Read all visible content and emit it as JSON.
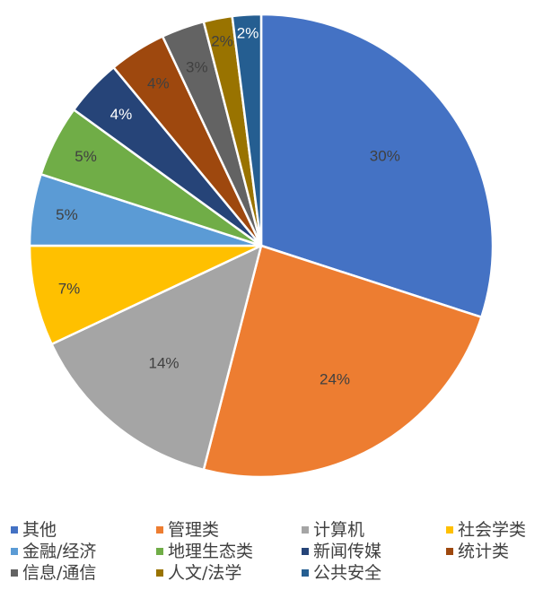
{
  "chart_data": {
    "type": "pie",
    "title": "",
    "start_angle_deg": 0,
    "direction": "clockwise",
    "legend_position": "bottom",
    "data_labels": "percent",
    "slices": [
      {
        "label": "其他",
        "value": 30,
        "display": "30%",
        "color": "#4472C4",
        "label_color": "#404040"
      },
      {
        "label": "管理类",
        "value": 24,
        "display": "24%",
        "color": "#ED7D31",
        "label_color": "#404040"
      },
      {
        "label": "计算机",
        "value": 14,
        "display": "14%",
        "color": "#A5A5A5",
        "label_color": "#404040"
      },
      {
        "label": "社会学类",
        "value": 7,
        "display": "7%",
        "color": "#FFC000",
        "label_color": "#404040"
      },
      {
        "label": "金融/经济",
        "value": 5,
        "display": "5%",
        "color": "#5B9BD5",
        "label_color": "#404040"
      },
      {
        "label": "地理生态类",
        "value": 5,
        "display": "5%",
        "color": "#70AD47",
        "label_color": "#404040"
      },
      {
        "label": "新闻传媒",
        "value": 4,
        "display": "4%",
        "color": "#264478",
        "label_color": "#ffffff"
      },
      {
        "label": "统计类",
        "value": 4,
        "display": "4%",
        "color": "#9E480E",
        "label_color": "#404040"
      },
      {
        "label": "信息/通信",
        "value": 3,
        "display": "3%",
        "color": "#636363",
        "label_color": "#404040"
      },
      {
        "label": "人文/法学",
        "value": 2,
        "display": "2%",
        "color": "#997300",
        "label_color": "#404040"
      },
      {
        "label": "公共安全",
        "value": 2,
        "display": "2%",
        "color": "#255E91",
        "label_color": "#ffffff"
      }
    ]
  }
}
